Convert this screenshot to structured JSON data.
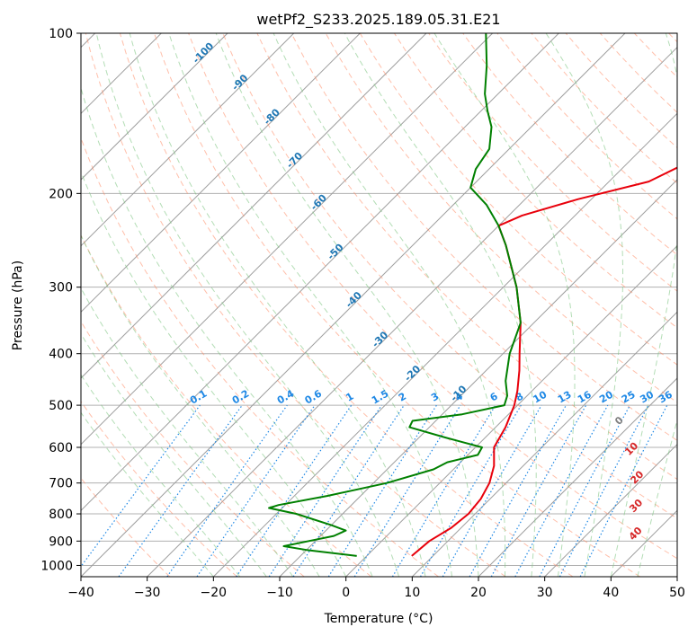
{
  "chart_data": {
    "type": "line",
    "diagram": "skew-t log-p",
    "title": "wetPf2_S233.2025.189.05.31.E21",
    "xlabel": "Temperature (°C)",
    "ylabel": "Pressure (hPa)",
    "xlim": [
      -40,
      50
    ],
    "ylim": [
      1050,
      100
    ],
    "y_scale": "log",
    "grid": true,
    "x_ticks": [
      -40,
      -30,
      -20,
      -10,
      0,
      10,
      20,
      30,
      40,
      50
    ],
    "y_ticks": [
      100,
      200,
      300,
      400,
      500,
      600,
      700,
      800,
      900,
      1000
    ],
    "series": [
      {
        "color": "#e8000b",
        "points": [
          {
            "p": 960,
            "t": 6.8
          },
          {
            "p": 900,
            "t": 7.2
          },
          {
            "p": 850,
            "t": 8.5
          },
          {
            "p": 800,
            "t": 9.0
          },
          {
            "p": 750,
            "t": 8.6
          },
          {
            "p": 700,
            "t": 7.5
          },
          {
            "p": 650,
            "t": 5.6
          },
          {
            "p": 600,
            "t": 2.8
          },
          {
            "p": 550,
            "t": 1.5
          },
          {
            "p": 500,
            "t": -0.5
          },
          {
            "p": 470,
            "t": -2.2
          },
          {
            "p": 430,
            "t": -5.0
          },
          {
            "p": 400,
            "t": -7.5
          },
          {
            "p": 350,
            "t": -12.0
          },
          {
            "p": 300,
            "t": -18.0
          },
          {
            "p": 250,
            "t": -26.0
          },
          {
            "p": 230,
            "t": -30.0
          },
          {
            "p": 220,
            "t": -28.0
          },
          {
            "p": 205,
            "t": -22.0
          },
          {
            "p": 190,
            "t": -14.0
          },
          {
            "p": 175,
            "t": -11.0
          },
          {
            "p": 160,
            "t": -11.5
          },
          {
            "p": 145,
            "t": -11.8
          },
          {
            "p": 130,
            "t": -17.0
          },
          {
            "p": 120,
            "t": -20.0
          },
          {
            "p": 110,
            "t": -25.5
          },
          {
            "p": 100,
            "t": -30.0
          }
        ]
      },
      {
        "color": "#008000",
        "points": [
          {
            "p": 960,
            "t": -1.5
          },
          {
            "p": 935,
            "t": -10.0
          },
          {
            "p": 920,
            "t": -14.0
          },
          {
            "p": 900,
            "t": -11.0
          },
          {
            "p": 880,
            "t": -8.0
          },
          {
            "p": 860,
            "t": -7.0
          },
          {
            "p": 840,
            "t": -10.0
          },
          {
            "p": 800,
            "t": -17.0
          },
          {
            "p": 780,
            "t": -22.0
          },
          {
            "p": 770,
            "t": -21.0
          },
          {
            "p": 740,
            "t": -15.0
          },
          {
            "p": 700,
            "t": -8.0
          },
          {
            "p": 660,
            "t": -3.0
          },
          {
            "p": 640,
            "t": -2.0
          },
          {
            "p": 620,
            "t": 1.5
          },
          {
            "p": 600,
            "t": 1.0
          },
          {
            "p": 575,
            "t": -6.0
          },
          {
            "p": 550,
            "t": -13.0
          },
          {
            "p": 535,
            "t": -13.5
          },
          {
            "p": 520,
            "t": -7.0
          },
          {
            "p": 500,
            "t": -2.0
          },
          {
            "p": 480,
            "t": -3.0
          },
          {
            "p": 450,
            "t": -5.5
          },
          {
            "p": 400,
            "t": -9.0
          },
          {
            "p": 350,
            "t": -12.0
          },
          {
            "p": 300,
            "t": -18.0
          },
          {
            "p": 250,
            "t": -26.0
          },
          {
            "p": 230,
            "t": -30.0
          },
          {
            "p": 210,
            "t": -35.0
          },
          {
            "p": 195,
            "t": -40.0
          },
          {
            "p": 180,
            "t": -42.0
          },
          {
            "p": 165,
            "t": -43.0
          },
          {
            "p": 150,
            "t": -46.0
          },
          {
            "p": 140,
            "t": -49.0
          },
          {
            "p": 130,
            "t": -52.0
          },
          {
            "p": 115,
            "t": -56.0
          },
          {
            "p": 100,
            "t": -61.0
          }
        ]
      }
    ],
    "isotherm_labels": [
      -100,
      -90,
      -80,
      -70,
      -60,
      -50,
      -40,
      -30,
      -20,
      -10
    ],
    "mixing_ratio_labels": [
      "0.1",
      "0.2",
      "0.4",
      "0.6",
      "1",
      "1.5",
      "2",
      "3",
      "4",
      "6",
      "8",
      "10",
      "13",
      "16",
      "20",
      "25",
      "30",
      "36"
    ],
    "moist_adiabat_labels": [
      "0",
      "10",
      "20",
      "30",
      "40"
    ]
  },
  "colors": {
    "temperature": "#e8000b",
    "dewpoint": "#008000",
    "isotherm_label": "#1f77b4",
    "mixing_ratio": "#1e88e5",
    "moist_label_zero": "#808080",
    "moist_label": "#d62728",
    "dry_adiabat": "#ff8a65",
    "moist_adiabat": "#81c784",
    "skew_isotherm": "#9e9e9e"
  }
}
